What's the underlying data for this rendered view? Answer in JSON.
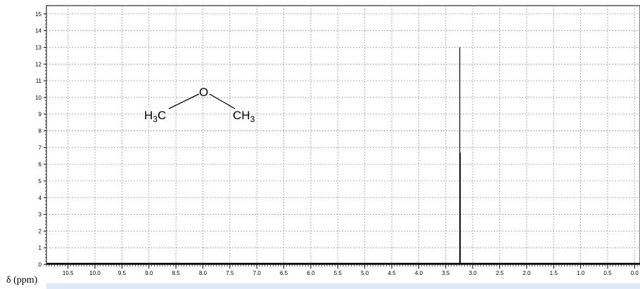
{
  "chart_data": {
    "type": "line",
    "title": "",
    "xlabel": "δ (ppm)",
    "ylabel": "",
    "x_reversed": true,
    "xlim": [
      10.9,
      -0.1
    ],
    "ylim": [
      0,
      15.5
    ],
    "x_ticks": [
      "10.5",
      "10.0",
      "9.5",
      "9.0",
      "8.5",
      "8.0",
      "7.5",
      "7.0",
      "6.5",
      "6.0",
      "5.5",
      "5.0",
      "4.5",
      "4.0",
      "3.5",
      "3.0",
      "2.5",
      "2.0",
      "1.5",
      "1.0",
      "0.5",
      "0.0"
    ],
    "y_ticks": [
      "0",
      "1",
      "2",
      "3",
      "4",
      "5",
      "6",
      "7",
      "8",
      "9",
      "10",
      "11",
      "12",
      "13",
      "14",
      "15"
    ],
    "grid": true,
    "series": [
      {
        "peaks": [
          {
            "x": 3.24,
            "y": 13.0
          },
          {
            "x": 3.23,
            "y": 6.7
          }
        ],
        "integral_line_x": 3.235
      }
    ],
    "annotation_structure": {
      "left_group": "H3C",
      "center_atom": "O",
      "right_group": "CH3"
    }
  }
}
